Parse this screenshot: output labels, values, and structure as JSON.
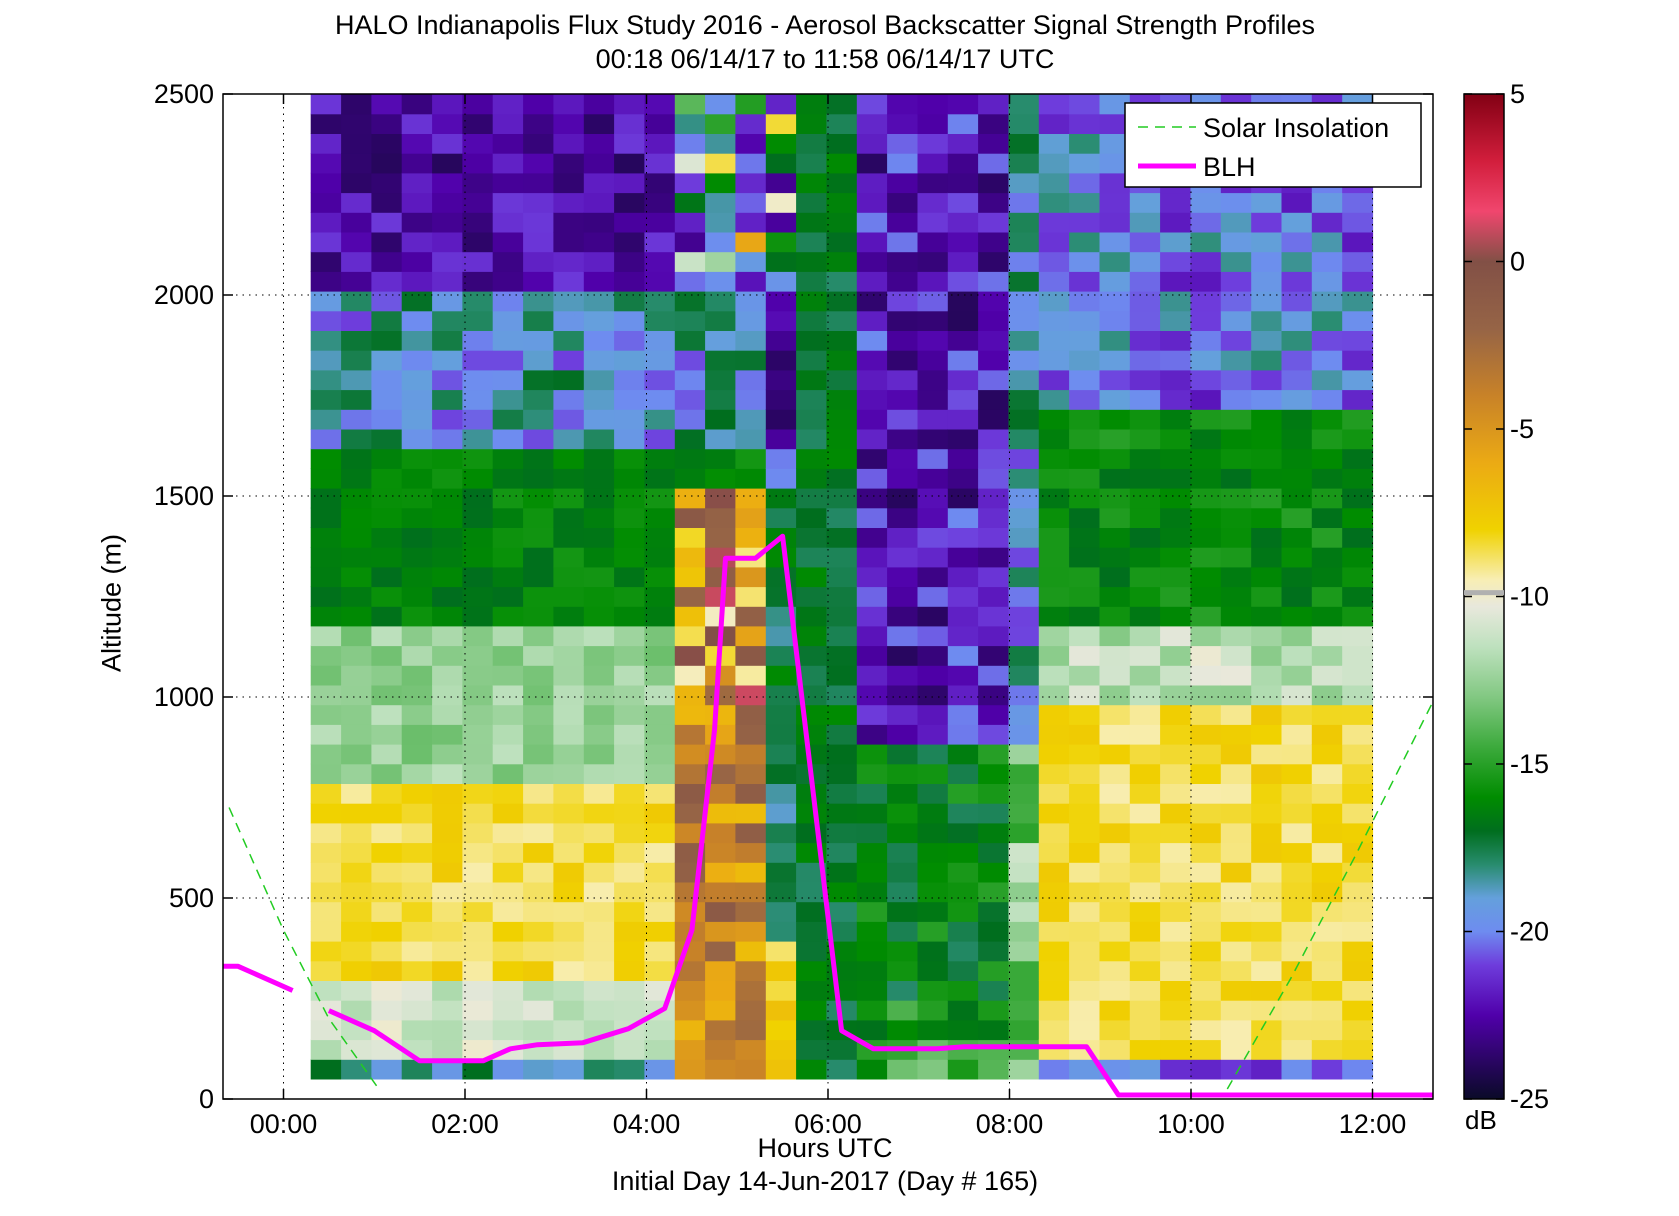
{
  "chart_data": {
    "type": "heatmap",
    "title": "HALO Indianapolis Flux Study 2016 - Aerosol Backscatter Signal Strength Profiles",
    "subtitle": "00:18 06/14/17 to 11:58 06/14/17  UTC",
    "xlabel": "Hours UTC",
    "xlabel_sub": "Initial Day 14-Jun-2017 (Day # 165)",
    "ylabel": "Altitude (m)",
    "xlim": [
      -0.6667,
      12.6667
    ],
    "ylim": [
      0,
      2500
    ],
    "x_ticks": [
      0,
      2,
      4,
      6,
      8,
      10,
      12
    ],
    "x_tick_labels": [
      "00:00",
      "02:00",
      "04:00",
      "06:00",
      "08:00",
      "10:00",
      "12:00"
    ],
    "y_ticks": [
      0,
      500,
      1000,
      1500,
      2000,
      2500
    ],
    "y_tick_labels": [
      "0",
      "500",
      "1000",
      "1500",
      "2000",
      "2500"
    ],
    "grid": true,
    "colorbar": {
      "label": "dB",
      "range": [
        -25,
        5
      ],
      "ticks": [
        5,
        0,
        -5,
        -10,
        -15,
        -20,
        -25
      ],
      "tick_labels": [
        "5",
        "0",
        "-5",
        "-10",
        "-15",
        "-20",
        "-25"
      ]
    },
    "legend_position": "top-right",
    "series": [
      {
        "name": "Solar Insolation",
        "style": "dashed",
        "color": "#22cc22",
        "segments": [
          [
            [
              -0.6,
              725
            ],
            [
              0.0,
              420
            ],
            [
              0.5,
              200
            ],
            [
              1.05,
              25
            ]
          ],
          [
            [
              10.4,
              25
            ],
            [
              11.1,
              300
            ],
            [
              11.8,
              600
            ],
            [
              12.67,
              990
            ]
          ]
        ]
      },
      {
        "name": "BLH",
        "style": "solid",
        "color": "#ff00ff",
        "segments": [
          [
            [
              -0.67,
              330
            ],
            [
              -0.5,
              330
            ],
            [
              0.1,
              270
            ]
          ],
          [
            [
              0.5,
              220
            ],
            [
              1.0,
              170
            ],
            [
              1.5,
              95
            ],
            [
              2.2,
              95
            ],
            [
              2.5,
              125
            ],
            [
              2.8,
              135
            ],
            [
              3.3,
              140
            ],
            [
              3.8,
              175
            ],
            [
              4.2,
              225
            ],
            [
              4.5,
              420
            ],
            [
              4.75,
              920
            ],
            [
              4.87,
              1345
            ],
            [
              5.2,
              1345
            ],
            [
              5.5,
              1400
            ],
            [
              6.15,
              170
            ],
            [
              6.5,
              125
            ],
            [
              7.2,
              125
            ],
            [
              7.5,
              130
            ],
            [
              8.5,
              130
            ],
            [
              8.85,
              130
            ],
            [
              9.2,
              10
            ],
            [
              12.67,
              10
            ]
          ]
        ]
      }
    ]
  }
}
